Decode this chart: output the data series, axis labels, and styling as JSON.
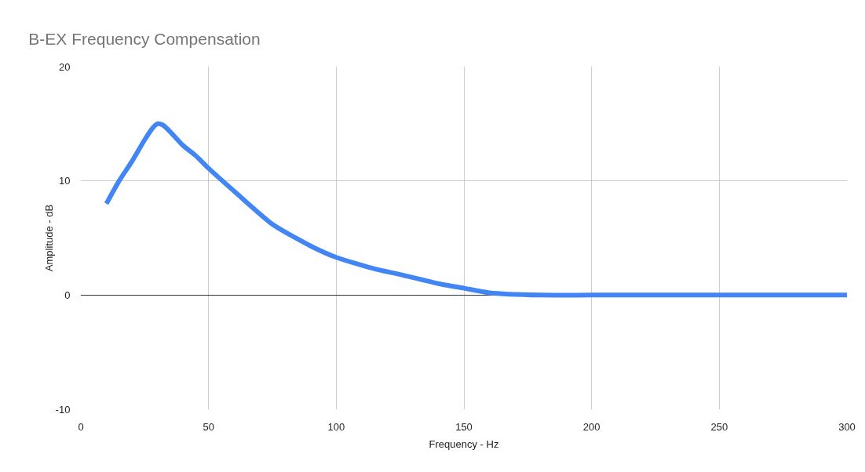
{
  "chart_data": {
    "type": "line",
    "title": "B-EX Frequency Compensation",
    "xlabel": "Frequency - Hz",
    "ylabel": "Amplitude - dB",
    "x": [
      10,
      15,
      20,
      25,
      28,
      30,
      32,
      35,
      40,
      45,
      50,
      60,
      75,
      90,
      100,
      115,
      125,
      140,
      150,
      160,
      180,
      200,
      250,
      300
    ],
    "series": [
      {
        "color": "#4285f4",
        "values": [
          8,
          10,
          11.7,
          13.6,
          14.6,
          15,
          14.9,
          14.3,
          13.1,
          12.2,
          11.1,
          9.1,
          6.2,
          4.3,
          3.3,
          2.3,
          1.8,
          1.0,
          0.6,
          0.2,
          0,
          0,
          0,
          0
        ]
      }
    ],
    "xlim": [
      0,
      300
    ],
    "xticks": [
      0,
      50,
      100,
      150,
      200,
      250,
      300
    ],
    "ylim": [
      -10,
      20
    ],
    "yticks": [
      -10,
      0,
      10,
      20
    ],
    "grid": true,
    "marker": "none",
    "line_style": "solid"
  }
}
